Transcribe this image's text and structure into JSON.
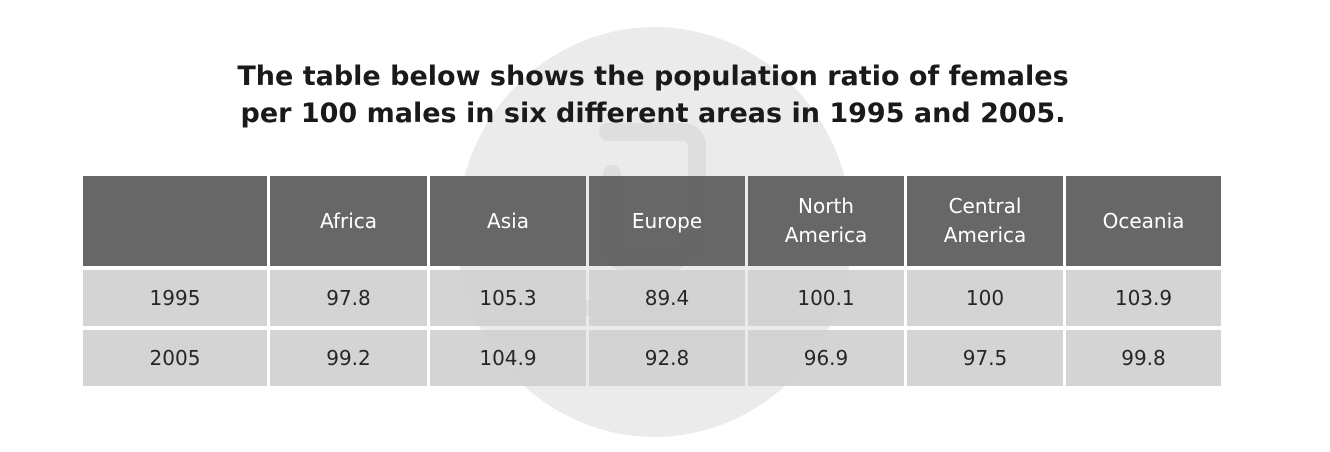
{
  "chart_data": {
    "type": "table",
    "title": "The table below shows the population ratio of females per 100 males in six different areas in 1995 and 2005.",
    "title_lines": [
      "The table below shows the population ratio of females",
      "per 100 males in six different areas in 1995 and 2005."
    ],
    "columns": [
      "",
      "Africa",
      "Asia",
      "Europe",
      "North\nAmerica",
      "Central\nAmerica",
      "Oceania"
    ],
    "rows": [
      {
        "label": "1995",
        "values": [
          "97.8",
          "105.3",
          "89.4",
          "100.1",
          "100",
          "103.9"
        ]
      },
      {
        "label": "2005",
        "values": [
          "99.2",
          "104.9",
          "92.8",
          "96.9",
          "97.5",
          "99.8"
        ]
      }
    ]
  },
  "colors": {
    "header_background": "#626262",
    "header_text": "#ffffff",
    "body_background": "#d0d0d0",
    "body_text": "#262626",
    "watermark": "#ebebeb"
  }
}
